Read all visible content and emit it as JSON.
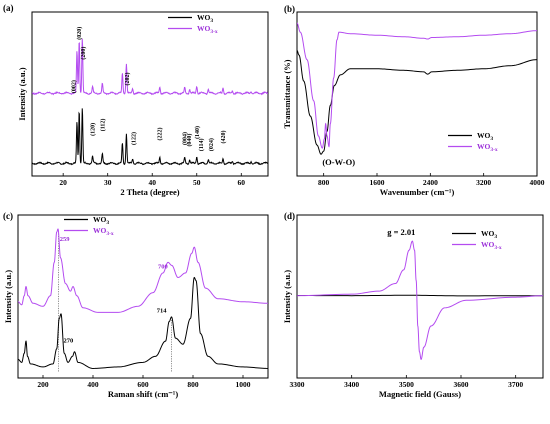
{
  "colors": {
    "black_series": "#000000",
    "purple_series": "#b44cf0",
    "purple_text": "#9b30d9"
  },
  "chart_data": [
    {
      "id": "a",
      "type": "line",
      "panel_label": "(a)",
      "xlabel": "2 Theta (degree)",
      "ylabel": "Intensity (a.u.)",
      "xlim": [
        13,
        66
      ],
      "xticks": [
        20,
        30,
        40,
        50,
        60
      ],
      "yticks_shown": false,
      "legend": {
        "position": "top-right",
        "entries": [
          "WO3",
          "WO3-x"
        ]
      },
      "series": [
        {
          "name": "WO3",
          "color": "#000000",
          "offset": 0,
          "peaks": [
            [
              23.1,
              0.62
            ],
            [
              23.6,
              0.8
            ],
            [
              24.3,
              0.83
            ],
            [
              26.6,
              0.1
            ],
            [
              28.8,
              0.14
            ],
            [
              33.3,
              0.3
            ],
            [
              34.2,
              0.45
            ],
            [
              35.6,
              0.07
            ],
            [
              41.7,
              0.1
            ],
            [
              47.3,
              0.08
            ],
            [
              48.4,
              0.06
            ],
            [
              50.0,
              0.11
            ],
            [
              52.6,
              0.06
            ],
            [
              55.9,
              0.08
            ],
            [
              58.0,
              0.04
            ],
            [
              62.2,
              0.03
            ]
          ]
        },
        {
          "name": "WO3-x",
          "color": "#b44cf0",
          "offset": 1,
          "peaks": [
            [
              23.1,
              0.62
            ],
            [
              23.6,
              0.8
            ],
            [
              24.3,
              0.83
            ],
            [
              26.6,
              0.1
            ],
            [
              28.8,
              0.14
            ],
            [
              33.3,
              0.3
            ],
            [
              34.2,
              0.45
            ],
            [
              35.6,
              0.07
            ],
            [
              41.7,
              0.1
            ],
            [
              47.3,
              0.08
            ],
            [
              48.4,
              0.06
            ],
            [
              50.0,
              0.11
            ],
            [
              52.6,
              0.06
            ],
            [
              55.9,
              0.08
            ],
            [
              58.0,
              0.04
            ],
            [
              62.2,
              0.03
            ]
          ]
        }
      ],
      "annotations": [
        {
          "text": "(002)",
          "x": 22.3,
          "y": 0.5
        },
        {
          "text": "(020)",
          "x": 23.6,
          "y": 0.85
        },
        {
          "text": "(200)",
          "x": 24.5,
          "y": 0.72
        },
        {
          "text": "(120)",
          "x": 26.6,
          "y": 0.22
        },
        {
          "text": "(112)",
          "x": 28.8,
          "y": 0.25
        },
        {
          "text": "(202)",
          "x": 34.3,
          "y": 0.55
        },
        {
          "text": "(122)",
          "x": 35.8,
          "y": 0.16
        },
        {
          "text": "(222)",
          "x": 41.6,
          "y": 0.19
        },
        {
          "text": "(004)",
          "x": 47.2,
          "y": 0.16
        },
        {
          "text": "(040)",
          "x": 48.3,
          "y": 0.15
        },
        {
          "text": "(140)",
          "x": 50.0,
          "y": 0.2
        },
        {
          "text": "(114)",
          "x": 51.0,
          "y": 0.12
        },
        {
          "text": "(024)",
          "x": 53.2,
          "y": 0.12
        },
        {
          "text": "(420)",
          "x": 55.9,
          "y": 0.17
        }
      ]
    },
    {
      "id": "b",
      "type": "line",
      "panel_label": "(b)",
      "xlabel": "Wavenumber (cm⁻¹)",
      "ylabel": "Transmittance (%)",
      "xlim": [
        400,
        4000
      ],
      "xticks": [
        800,
        1600,
        2400,
        3200,
        4000
      ],
      "yticks_shown": false,
      "legend": {
        "position": "bottom-right",
        "entries": [
          "WO3",
          "WO3-x"
        ]
      },
      "series": [
        {
          "name": "WO3",
          "color": "#000000",
          "points": [
            [
              400,
              0.78
            ],
            [
              430,
              0.75
            ],
            [
              500,
              0.58
            ],
            [
              600,
              0.35
            ],
            [
              700,
              0.16
            ],
            [
              760,
              0.1
            ],
            [
              800,
              0.12
            ],
            [
              850,
              0.25
            ],
            [
              900,
              0.42
            ],
            [
              960,
              0.55
            ],
            [
              1050,
              0.62
            ],
            [
              1200,
              0.66
            ],
            [
              1600,
              0.66
            ],
            [
              2000,
              0.65
            ],
            [
              2300,
              0.64
            ],
            [
              2360,
              0.625
            ],
            [
              2420,
              0.64
            ],
            [
              2800,
              0.65
            ],
            [
              3200,
              0.66
            ],
            [
              3600,
              0.68
            ],
            [
              4000,
              0.72
            ]
          ]
        },
        {
          "name": "WO3-x",
          "color": "#b44cf0",
          "points": [
            [
              400,
              0.96
            ],
            [
              450,
              0.9
            ],
            [
              550,
              0.72
            ],
            [
              650,
              0.45
            ],
            [
              720,
              0.22
            ],
            [
              780,
              0.14
            ],
            [
              810,
              0.2
            ],
            [
              830,
              0.3
            ],
            [
              850,
              0.22
            ],
            [
              880,
              0.15
            ],
            [
              900,
              0.3
            ],
            [
              950,
              0.6
            ],
            [
              1000,
              0.85
            ],
            [
              1030,
              0.9
            ],
            [
              1200,
              0.89
            ],
            [
              1600,
              0.88
            ],
            [
              2000,
              0.87
            ],
            [
              2300,
              0.86
            ],
            [
              2360,
              0.855
            ],
            [
              2420,
              0.865
            ],
            [
              2800,
              0.87
            ],
            [
              3200,
              0.88
            ],
            [
              3600,
              0.89
            ],
            [
              4000,
              0.91
            ]
          ]
        }
      ],
      "annotations": [
        {
          "text": "(O-W-O)",
          "x": 780,
          "y": 0.03
        }
      ]
    },
    {
      "id": "c",
      "type": "line",
      "panel_label": "(c)",
      "xlabel": "Raman shift (cm⁻¹)",
      "ylabel": "Intensity (a.u.)",
      "xlim": [
        100,
        1100
      ],
      "xticks": [
        200,
        400,
        600,
        800,
        1000
      ],
      "yticks_shown": false,
      "legend": {
        "position": "top-center",
        "entries": [
          "WO3",
          "WO3-x"
        ]
      },
      "series": [
        {
          "name": "WO3",
          "color": "#000000",
          "points": [
            [
              100,
              0.08
            ],
            [
              115,
              0.06
            ],
            [
              125,
              0.12
            ],
            [
              132,
              0.2
            ],
            [
              138,
              0.1
            ],
            [
              150,
              0.05
            ],
            [
              200,
              0.03
            ],
            [
              240,
              0.05
            ],
            [
              255,
              0.15
            ],
            [
              265,
              0.35
            ],
            [
              272,
              0.38
            ],
            [
              285,
              0.12
            ],
            [
              300,
              0.06
            ],
            [
              318,
              0.1
            ],
            [
              326,
              0.13
            ],
            [
              340,
              0.06
            ],
            [
              400,
              0.02
            ],
            [
              500,
              0.03
            ],
            [
              600,
              0.06
            ],
            [
              650,
              0.1
            ],
            [
              690,
              0.2
            ],
            [
              705,
              0.33
            ],
            [
              714,
              0.36
            ],
            [
              730,
              0.22
            ],
            [
              760,
              0.18
            ],
            [
              790,
              0.35
            ],
            [
              805,
              0.62
            ],
            [
              812,
              0.6
            ],
            [
              830,
              0.25
            ],
            [
              860,
              0.1
            ],
            [
              900,
              0.05
            ],
            [
              1000,
              0.03
            ],
            [
              1100,
              0.02
            ]
          ]
        },
        {
          "name": "WO3-x",
          "color": "#b44cf0",
          "points": [
            [
              100,
              0.46
            ],
            [
              115,
              0.44
            ],
            [
              125,
              0.5
            ],
            [
              132,
              0.56
            ],
            [
              140,
              0.5
            ],
            [
              160,
              0.45
            ],
            [
              200,
              0.43
            ],
            [
              230,
              0.5
            ],
            [
              245,
              0.72
            ],
            [
              255,
              0.92
            ],
            [
              260,
              0.94
            ],
            [
              270,
              0.75
            ],
            [
              290,
              0.58
            ],
            [
              310,
              0.53
            ],
            [
              320,
              0.56
            ],
            [
              335,
              0.5
            ],
            [
              360,
              0.42
            ],
            [
              420,
              0.39
            ],
            [
              500,
              0.39
            ],
            [
              580,
              0.43
            ],
            [
              640,
              0.52
            ],
            [
              680,
              0.65
            ],
            [
              700,
              0.72
            ],
            [
              715,
              0.7
            ],
            [
              740,
              0.62
            ],
            [
              770,
              0.65
            ],
            [
              795,
              0.78
            ],
            [
              805,
              0.82
            ],
            [
              820,
              0.72
            ],
            [
              850,
              0.55
            ],
            [
              900,
              0.48
            ],
            [
              1000,
              0.46
            ],
            [
              1100,
              0.45
            ]
          ]
        }
      ],
      "annotations": [
        {
          "text": "259",
          "x": 267,
          "y": 0.86,
          "color": "#9b30d9"
        },
        {
          "text": "270",
          "x": 282,
          "y": 0.19
        },
        {
          "text": "700",
          "x": 660,
          "y": 0.68,
          "color": "#9b30d9"
        },
        {
          "text": "714",
          "x": 655,
          "y": 0.39
        }
      ],
      "guides": [
        {
          "x": 262,
          "from": 0.0,
          "to": 0.92
        },
        {
          "x": 714,
          "from": 0.0,
          "to": 0.34
        }
      ]
    },
    {
      "id": "d",
      "type": "line",
      "panel_label": "(d)",
      "xlabel": "Magnetic field (Gauss)",
      "ylabel": "Intensity (a.u.)",
      "xlim": [
        3300,
        3750
      ],
      "xticks": [
        3300,
        3400,
        3500,
        3600,
        3700
      ],
      "yticks_shown": false,
      "legend": {
        "position": "top-right",
        "entries": [
          "WO3",
          "WO3-x"
        ]
      },
      "series": [
        {
          "name": "WO3",
          "color": "#000000",
          "points": [
            [
              3300,
              0.501
            ],
            [
              3400,
              0.5
            ],
            [
              3500,
              0.503
            ],
            [
              3600,
              0.499
            ],
            [
              3750,
              0.5
            ]
          ]
        },
        {
          "name": "WO3-x",
          "color": "#b44cf0",
          "points": [
            [
              3300,
              0.5
            ],
            [
              3400,
              0.51
            ],
            [
              3450,
              0.53
            ],
            [
              3480,
              0.58
            ],
            [
              3495,
              0.67
            ],
            [
              3505,
              0.8
            ],
            [
              3511,
              0.86
            ],
            [
              3515,
              0.8
            ],
            [
              3518,
              0.6
            ],
            [
              3521,
              0.3
            ],
            [
              3524,
              0.13
            ],
            [
              3527,
              0.08
            ],
            [
              3532,
              0.16
            ],
            [
              3545,
              0.3
            ],
            [
              3570,
              0.42
            ],
            [
              3610,
              0.47
            ],
            [
              3700,
              0.49
            ],
            [
              3750,
              0.5
            ]
          ]
        }
      ],
      "annotations": [
        {
          "text": "g = 2.01",
          "x": 3465,
          "y": 0.9
        }
      ]
    }
  ]
}
